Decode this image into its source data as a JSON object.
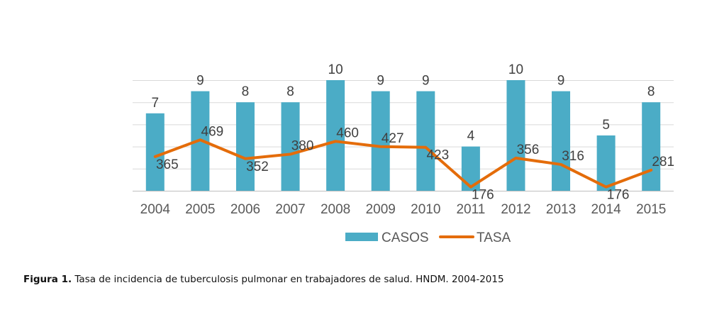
{
  "chart_data": {
    "type": "bar",
    "categories": [
      "2004",
      "2005",
      "2006",
      "2007",
      "2008",
      "2009",
      "2010",
      "2011",
      "2012",
      "2013",
      "2014",
      "2015"
    ],
    "series": [
      {
        "name": "CASOS",
        "type": "bar",
        "values": [
          7,
          9,
          8,
          8,
          10,
          9,
          9,
          4,
          10,
          9,
          5,
          8
        ],
        "color": "#4BACC6"
      },
      {
        "name": "TASA",
        "type": "line",
        "values": [
          365,
          469,
          352,
          380,
          460,
          427,
          423,
          176,
          356,
          316,
          176,
          281
        ],
        "color": "#E46C0A"
      }
    ],
    "ylim": [
      0,
      10
    ],
    "grid": true,
    "legend_position": "bottom"
  },
  "caption": {
    "label": "Figura 1.",
    "text": "Tasa de incidencia de tuberculosis pulmonar en trabajadores de salud. HNDM. 2004-2015"
  }
}
